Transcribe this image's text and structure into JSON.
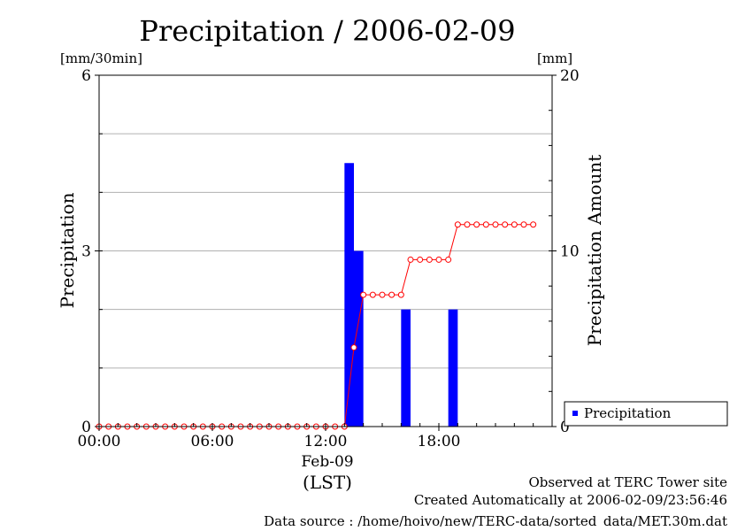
{
  "chart_data": {
    "type": "bar",
    "title": "Precipitation / 2006-02-09",
    "left_unit": "[mm/30min]",
    "right_unit": "[mm]",
    "ylabel": "Precipitation",
    "y2label": "Precipitation Amount",
    "ylim": [
      0,
      6
    ],
    "y2lim": [
      0,
      20
    ],
    "yticks": [
      "0",
      "3",
      "6"
    ],
    "y2ticks": [
      "0",
      "10",
      "20"
    ],
    "xticks": [
      "00:00",
      "06:00",
      "12:00",
      "18:00"
    ],
    "date_label": "Feb-09",
    "xlabel": "(LST)",
    "grid": true,
    "legend_position": "bottom-right",
    "colors": {
      "bars": "#0000ff",
      "cumulative": "#ff0000"
    },
    "x_hours": [
      0,
      0.5,
      1,
      1.5,
      2,
      2.5,
      3,
      3.5,
      4,
      4.5,
      5,
      5.5,
      6,
      6.5,
      7,
      7.5,
      8,
      8.5,
      9,
      9.5,
      10,
      10.5,
      11,
      11.5,
      12,
      12.5,
      13,
      13.5,
      14,
      14.5,
      15,
      15.5,
      16,
      16.5,
      17,
      17.5,
      18,
      18.5,
      19,
      19.5,
      20,
      20.5,
      21,
      21.5,
      22,
      22.5,
      23
    ],
    "series": [
      {
        "name": "Precipitation",
        "axis": "left",
        "render": "bar",
        "values": [
          0,
          0,
          0,
          0,
          0,
          0,
          0,
          0,
          0,
          0,
          0,
          0,
          0,
          0,
          0,
          0,
          0,
          0,
          0,
          0,
          0,
          0,
          0,
          0,
          0,
          0,
          4.5,
          3,
          0,
          0,
          0,
          0,
          2,
          0,
          0,
          0,
          0,
          2,
          0,
          0,
          0,
          0,
          0,
          0,
          0,
          0,
          0
        ]
      },
      {
        "axis": "right",
        "render": "line-markers",
        "values": [
          0,
          0,
          0,
          0,
          0,
          0,
          0,
          0,
          0,
          0,
          0,
          0,
          0,
          0,
          0,
          0,
          0,
          0,
          0,
          0,
          0,
          0,
          0,
          0,
          0,
          0,
          0,
          4.5,
          7.5,
          7.5,
          7.5,
          7.5,
          7.5,
          9.5,
          9.5,
          9.5,
          9.5,
          9.5,
          11.5,
          11.5,
          11.5,
          11.5,
          11.5,
          11.5,
          11.5,
          11.5,
          11.5
        ]
      }
    ],
    "legend": [
      "Precipitation"
    ],
    "footer": [
      "Observed at TERC Tower site",
      "Created Automatically at 2006-02-09/23:56:46",
      "Data source : /home/hoivo/new/TERC-data/sorted_data/MET.30m.dat"
    ]
  }
}
